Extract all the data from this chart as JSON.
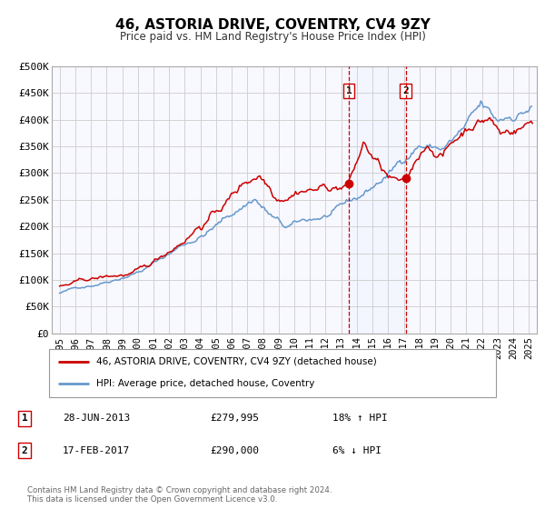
{
  "title": "46, ASTORIA DRIVE, COVENTRY, CV4 9ZY",
  "subtitle": "Price paid vs. HM Land Registry's House Price Index (HPI)",
  "xlim": [
    1994.5,
    2025.5
  ],
  "ylim": [
    0,
    500000
  ],
  "yticks": [
    0,
    50000,
    100000,
    150000,
    200000,
    250000,
    300000,
    350000,
    400000,
    450000,
    500000
  ],
  "ytick_labels": [
    "£0",
    "£50K",
    "£100K",
    "£150K",
    "£200K",
    "£250K",
    "£300K",
    "£350K",
    "£400K",
    "£450K",
    "£500K"
  ],
  "xticks": [
    1995,
    1996,
    1997,
    1998,
    1999,
    2000,
    2001,
    2002,
    2003,
    2004,
    2005,
    2006,
    2007,
    2008,
    2009,
    2010,
    2011,
    2012,
    2013,
    2014,
    2015,
    2016,
    2017,
    2018,
    2019,
    2020,
    2021,
    2022,
    2023,
    2024,
    2025
  ],
  "sale1_x": 2013.49,
  "sale1_y": 279995,
  "sale1_label": "1",
  "sale1_date": "28-JUN-2013",
  "sale1_price": "£279,995",
  "sale1_hpi": "18% ↑ HPI",
  "sale2_x": 2017.12,
  "sale2_y": 290000,
  "sale2_label": "2",
  "sale2_date": "17-FEB-2017",
  "sale2_price": "£290,000",
  "sale2_hpi": "6% ↓ HPI",
  "line1_color": "#cc0000",
  "line2_color": "#6699cc",
  "grid_color": "#cccccc",
  "background_color": "#f8f8ff",
  "shade_color": "#ddeeff",
  "legend1_label": "46, ASTORIA DRIVE, COVENTRY, CV4 9ZY (detached house)",
  "legend2_label": "HPI: Average price, detached house, Coventry",
  "footer": "Contains HM Land Registry data © Crown copyright and database right 2024.\nThis data is licensed under the Open Government Licence v3.0.",
  "marker_color": "#cc0000",
  "marker2_color": "#cc0000"
}
